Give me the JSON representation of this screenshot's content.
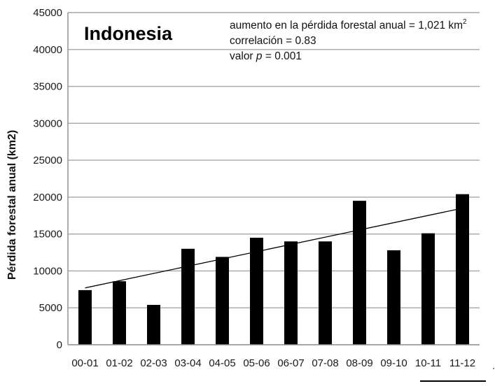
{
  "chart_data": {
    "type": "bar",
    "title": "Indonesia",
    "xlabel": "",
    "ylabel": "Pérdida forestal anual (km2)",
    "categories": [
      "00-01",
      "01-02",
      "02-03",
      "03-04",
      "04-05",
      "05-06",
      "06-07",
      "07-08",
      "08-09",
      "09-10",
      "10-11",
      "11-12"
    ],
    "values": [
      7400,
      8600,
      5400,
      13000,
      11900,
      14500,
      14000,
      14000,
      19500,
      12800,
      15100,
      20400
    ],
    "ylim": [
      0,
      45000
    ],
    "yticks": [
      0,
      5000,
      10000,
      15000,
      20000,
      25000,
      30000,
      35000,
      40000,
      45000
    ],
    "grid": true,
    "trendline": {
      "start": 7700,
      "end": 18500
    },
    "annotations": {
      "line1_prefix": "aumento en la pérdida forestal anual = 1,021 km",
      "line1_sup": "2",
      "line2": "correlación = 0.83",
      "line3_prefix": "valor ",
      "line3_p": "p",
      "line3_suffix": " = 0.001"
    },
    "colors": {
      "bar": "#000000",
      "grid": "#a6a6a6",
      "axis": "#8c8c8c",
      "trend": "#000000"
    }
  }
}
